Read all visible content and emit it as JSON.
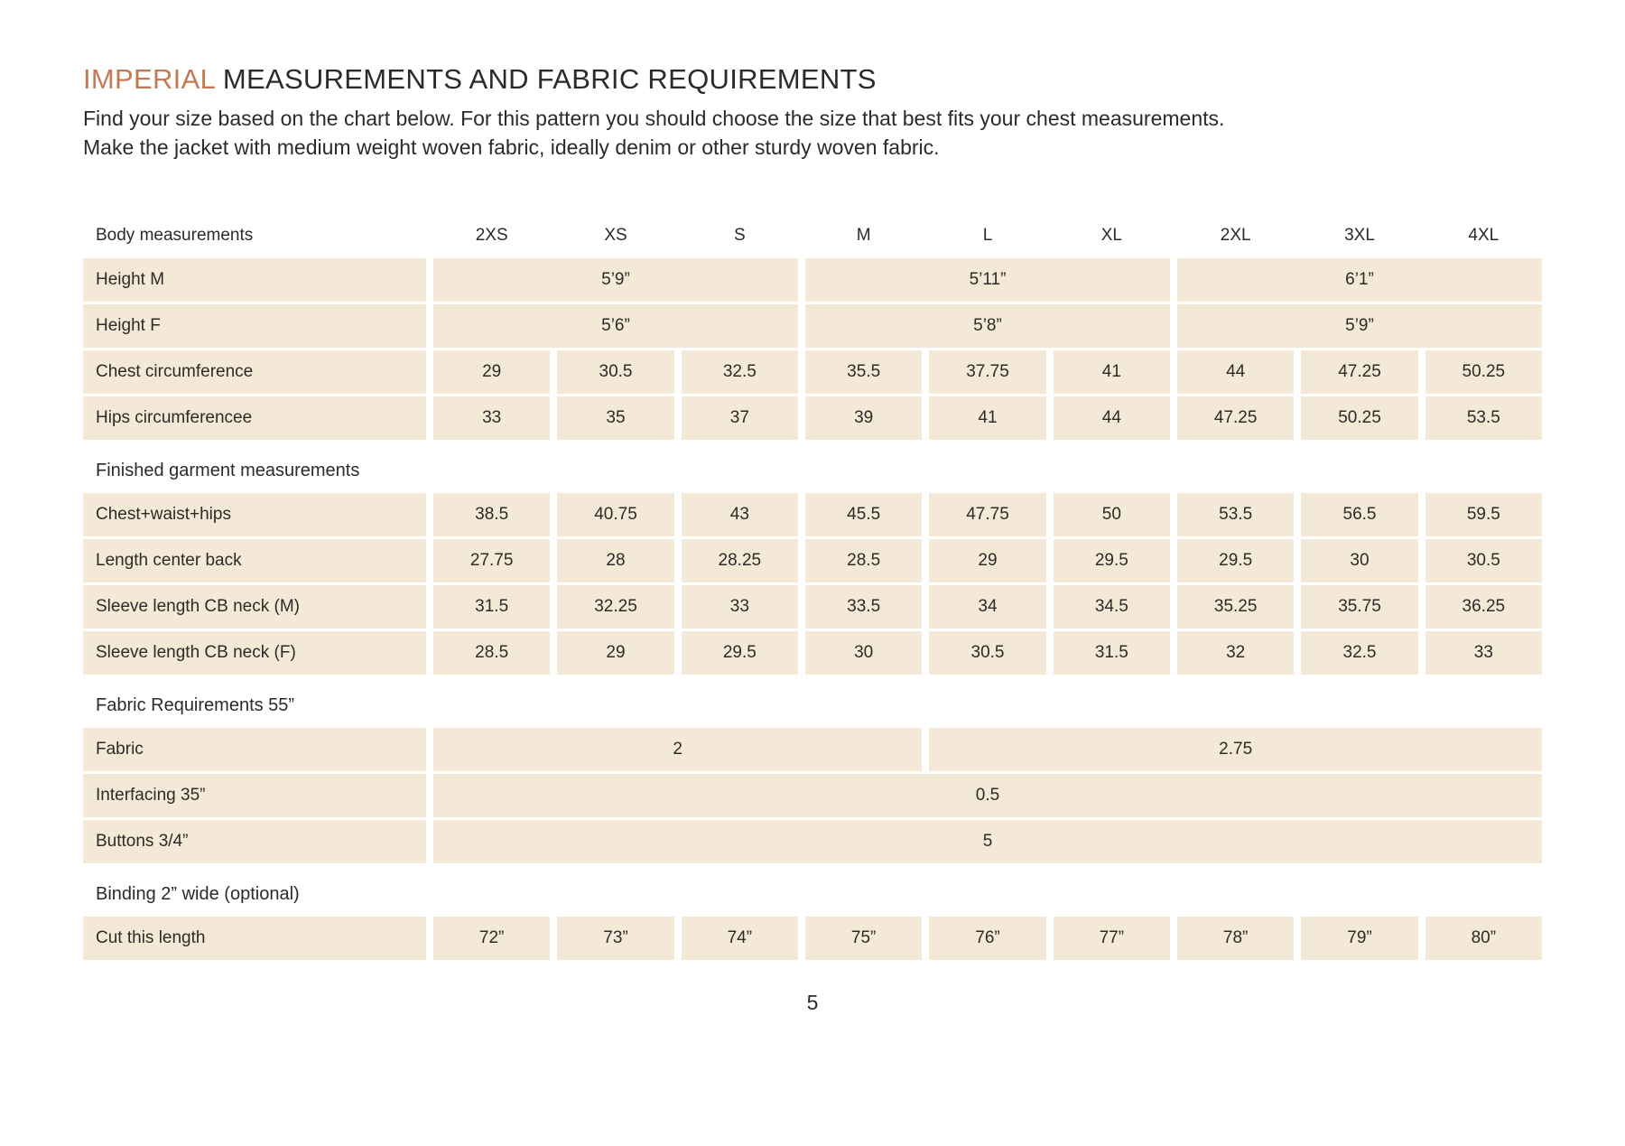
{
  "header": {
    "title_highlight": "IMPERIAL",
    "title_rest": " MEASUREMENTS AND FABRIC REQUIREMENTS",
    "intro": "Find your size based on the chart below. For this pattern you should choose the size that best fits your chest measurements. Make the jacket with medium weight woven fabric, ideally denim or other sturdy woven fabric."
  },
  "colors": {
    "accent": "#c37a54",
    "cell_bg": "#f3e9d6",
    "text": "#2d2a27"
  },
  "table": {
    "header_label": "Body measurements",
    "size_columns": [
      "2XS",
      "XS",
      "S",
      "M",
      "L",
      "XL",
      "2XL",
      "3XL",
      "4XL"
    ],
    "rows": [
      {
        "type": "data",
        "label": "Height M",
        "cells": [
          {
            "text": "5’9”",
            "span": 3
          },
          {
            "text": "5’11”",
            "span": 3
          },
          {
            "text": "6’1”",
            "span": 3
          }
        ]
      },
      {
        "type": "data",
        "label": "Height F",
        "cells": [
          {
            "text": "5’6”",
            "span": 3
          },
          {
            "text": "5’8”",
            "span": 3
          },
          {
            "text": "5’9”",
            "span": 3
          }
        ]
      },
      {
        "type": "data",
        "label": "Chest circumference",
        "cells": [
          {
            "text": "29",
            "span": 1
          },
          {
            "text": "30.5",
            "span": 1
          },
          {
            "text": "32.5",
            "span": 1
          },
          {
            "text": "35.5",
            "span": 1
          },
          {
            "text": "37.75",
            "span": 1
          },
          {
            "text": "41",
            "span": 1
          },
          {
            "text": "44",
            "span": 1
          },
          {
            "text": "47.25",
            "span": 1
          },
          {
            "text": "50.25",
            "span": 1
          }
        ]
      },
      {
        "type": "data",
        "label": "Hips circumferencee",
        "cells": [
          {
            "text": "33",
            "span": 1
          },
          {
            "text": "35",
            "span": 1
          },
          {
            "text": "37",
            "span": 1
          },
          {
            "text": "39",
            "span": 1
          },
          {
            "text": "41",
            "span": 1
          },
          {
            "text": "44",
            "span": 1
          },
          {
            "text": "47.25",
            "span": 1
          },
          {
            "text": "50.25",
            "span": 1
          },
          {
            "text": "53.5",
            "span": 1
          }
        ]
      },
      {
        "type": "section",
        "label": "Finished garment measurements"
      },
      {
        "type": "data",
        "label": "Chest+waist+hips",
        "cells": [
          {
            "text": "38.5",
            "span": 1
          },
          {
            "text": "40.75",
            "span": 1
          },
          {
            "text": "43",
            "span": 1
          },
          {
            "text": "45.5",
            "span": 1
          },
          {
            "text": "47.75",
            "span": 1
          },
          {
            "text": "50",
            "span": 1
          },
          {
            "text": "53.5",
            "span": 1
          },
          {
            "text": "56.5",
            "span": 1
          },
          {
            "text": "59.5",
            "span": 1
          }
        ]
      },
      {
        "type": "data",
        "label": "Length center back",
        "cells": [
          {
            "text": "27.75",
            "span": 1
          },
          {
            "text": "28",
            "span": 1
          },
          {
            "text": "28.25",
            "span": 1
          },
          {
            "text": "28.5",
            "span": 1
          },
          {
            "text": "29",
            "span": 1
          },
          {
            "text": "29.5",
            "span": 1
          },
          {
            "text": "29.5",
            "span": 1
          },
          {
            "text": "30",
            "span": 1
          },
          {
            "text": "30.5",
            "span": 1
          }
        ]
      },
      {
        "type": "data",
        "label": "Sleeve length CB neck (M)",
        "cells": [
          {
            "text": "31.5",
            "span": 1
          },
          {
            "text": "32.25",
            "span": 1
          },
          {
            "text": "33",
            "span": 1
          },
          {
            "text": "33.5",
            "span": 1
          },
          {
            "text": "34",
            "span": 1
          },
          {
            "text": "34.5",
            "span": 1
          },
          {
            "text": "35.25",
            "span": 1
          },
          {
            "text": "35.75",
            "span": 1
          },
          {
            "text": "36.25",
            "span": 1
          }
        ]
      },
      {
        "type": "data",
        "label": "Sleeve length CB neck (F)",
        "cells": [
          {
            "text": "28.5",
            "span": 1
          },
          {
            "text": "29",
            "span": 1
          },
          {
            "text": "29.5",
            "span": 1
          },
          {
            "text": "30",
            "span": 1
          },
          {
            "text": "30.5",
            "span": 1
          },
          {
            "text": "31.5",
            "span": 1
          },
          {
            "text": "32",
            "span": 1
          },
          {
            "text": "32.5",
            "span": 1
          },
          {
            "text": "33",
            "span": 1
          }
        ]
      },
      {
        "type": "section",
        "label": "Fabric Requirements 55”"
      },
      {
        "type": "data",
        "label": "Fabric",
        "cells": [
          {
            "text": "2",
            "span": 4
          },
          {
            "text": "2.75",
            "span": 5
          }
        ]
      },
      {
        "type": "data",
        "label": "Interfacing 35”",
        "cells": [
          {
            "text": "0.5",
            "span": 9
          }
        ]
      },
      {
        "type": "data",
        "label": "Buttons 3/4”",
        "cells": [
          {
            "text": "5",
            "span": 9
          }
        ]
      },
      {
        "type": "section",
        "label": "Binding 2” wide (optional)"
      },
      {
        "type": "data",
        "label": "Cut this length",
        "cells": [
          {
            "text": "72”",
            "span": 1
          },
          {
            "text": "73”",
            "span": 1
          },
          {
            "text": "74”",
            "span": 1
          },
          {
            "text": "75”",
            "span": 1
          },
          {
            "text": "76”",
            "span": 1
          },
          {
            "text": "77”",
            "span": 1
          },
          {
            "text": "78”",
            "span": 1
          },
          {
            "text": "79”",
            "span": 1
          },
          {
            "text": "80”",
            "span": 1
          }
        ]
      }
    ]
  },
  "footer": {
    "page_number": "5"
  }
}
